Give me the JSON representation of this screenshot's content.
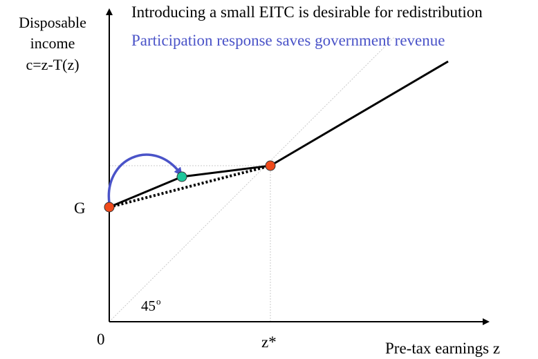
{
  "title_line1": "Introducing a small EITC is desirable for redistribution",
  "title_line2": "Participation response saves government revenue",
  "y_axis_label": [
    "Disposable",
    "income",
    "c=z-T(z)"
  ],
  "x_axis_label": "Pre-tax earnings z",
  "origin_label": "0",
  "g_label": "G",
  "zstar_label": "z*",
  "angle_label": "45",
  "angle_unit": "o",
  "colors": {
    "blue": "#4a53c8",
    "red_point": "#f04a1c",
    "teal_point": "#1ec79c",
    "guide": "#c8c8c8"
  }
}
